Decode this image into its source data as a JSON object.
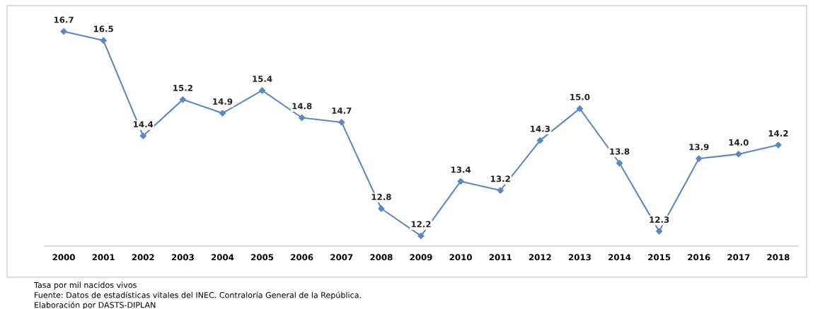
{
  "chart_data": {
    "type": "line",
    "categories": [
      "2000",
      "2001",
      "2002",
      "2003",
      "2004",
      "2005",
      "2006",
      "2007",
      "2008",
      "2009",
      "2010",
      "2011",
      "2012",
      "2013",
      "2014",
      "2015",
      "2016",
      "2017",
      "2018"
    ],
    "series": [
      {
        "color": "#5b87c5",
        "values": [
          16.7,
          16.5,
          14.4,
          15.2,
          14.9,
          15.4,
          14.8,
          14.7,
          12.8,
          12.2,
          13.4,
          13.2,
          14.3,
          15.0,
          13.8,
          12.3,
          13.9,
          14.0,
          14.2
        ],
        "value_labels": [
          "16.7",
          "16.5",
          "14.4",
          "15.2",
          "14.9",
          "15.4",
          "14.8",
          "14.7",
          "12.8",
          "12.2",
          "13.4",
          "13.2",
          "14.3",
          "15.0",
          "13.8",
          "12.3",
          "13.9",
          "14.0",
          "14.2"
        ]
      }
    ],
    "marker": "diamond",
    "line_style": "solid",
    "grid": false,
    "legend": false,
    "tick_labels": "x",
    "annotations": [
      "Tasa por mil nacidos vivos",
      "Fuente: Datos de estadísticas vitales del INEC. Contraloría General de la República.",
      "Elaboración por DASTS-DIPLAN"
    ]
  }
}
